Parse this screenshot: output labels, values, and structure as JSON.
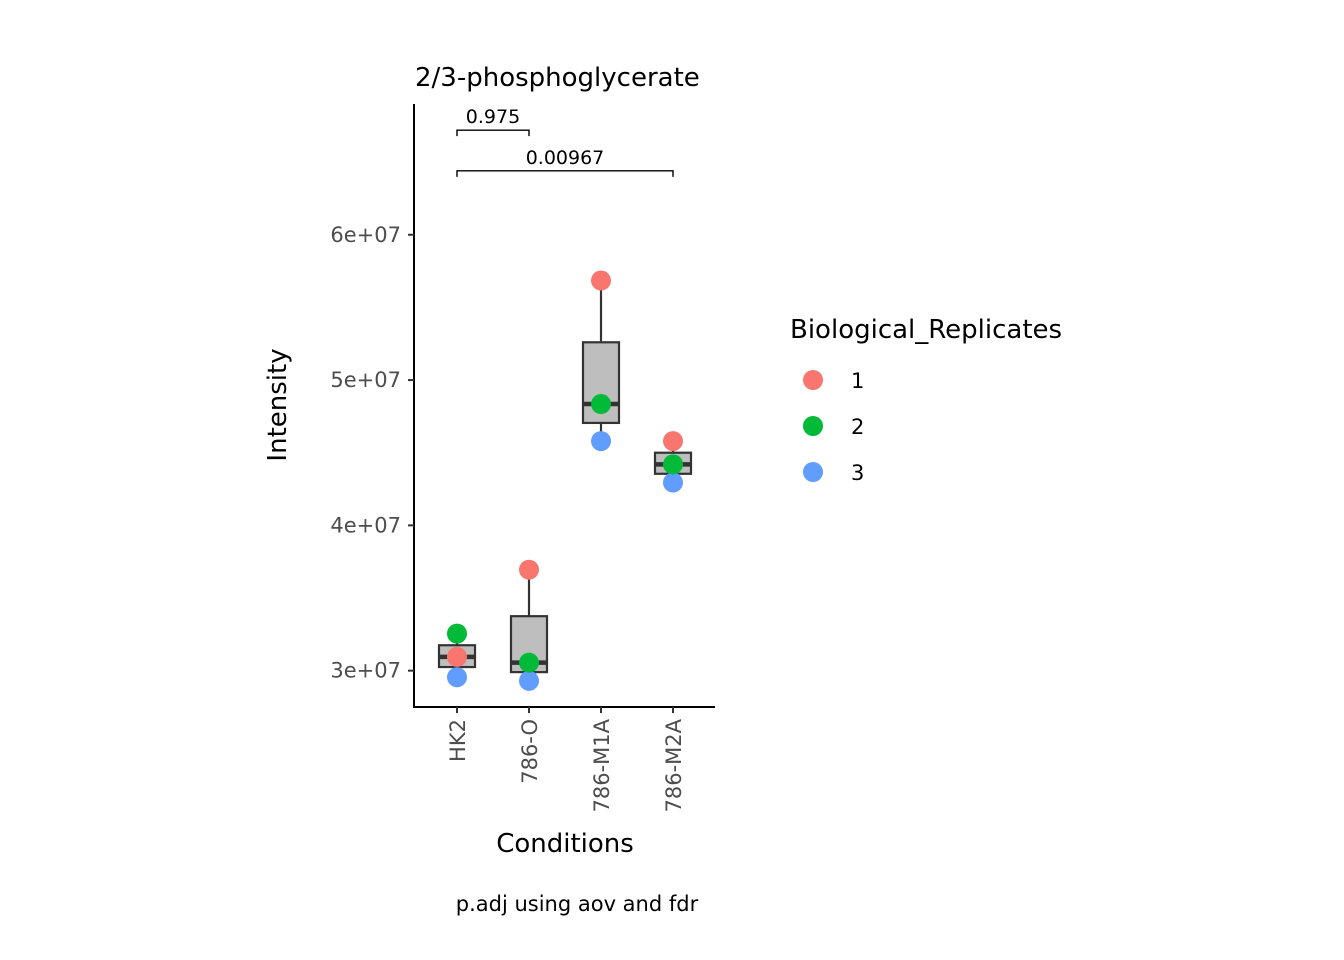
{
  "chart_data": {
    "type": "box",
    "title": "2/3-phosphoglycerate",
    "xlabel": "Conditions",
    "ylabel": "Intensity",
    "caption": "p.adj using  aov and fdr",
    "categories": [
      "HK2",
      "786-O",
      "786-M1A",
      "786-M2A"
    ],
    "ylim": [
      27500000,
      69000000
    ],
    "yticks": [
      30000000,
      40000000,
      50000000,
      60000000
    ],
    "ytick_labels": [
      "3e+07",
      "4e+07",
      "5e+07",
      "6e+07"
    ],
    "boxes": [
      {
        "category": "HK2",
        "q1": 30250000,
        "median": 30950000,
        "q3": 31750000,
        "whisker_low": 29550000,
        "whisker_high": 32550000
      },
      {
        "category": "786-O",
        "q1": 29900000,
        "median": 30550000,
        "q3": 33750000,
        "whisker_low": 29300000,
        "whisker_high": 36950000
      },
      {
        "category": "786-M1A",
        "q1": 47050000,
        "median": 48350000,
        "q3": 52600000,
        "whisker_low": 45800000,
        "whisker_high": 56850000
      },
      {
        "category": "786-M2A",
        "q1": 43550000,
        "median": 44200000,
        "q3": 45000000,
        "whisker_low": 42950000,
        "whisker_high": 45800000
      }
    ],
    "series": [
      {
        "name": "1",
        "values": [
          30950000,
          36950000,
          56850000,
          45800000
        ]
      },
      {
        "name": "2",
        "values": [
          32550000,
          30550000,
          48350000,
          44200000
        ]
      },
      {
        "name": "3",
        "values": [
          29550000,
          29300000,
          45800000,
          42950000
        ]
      }
    ],
    "comparisons": [
      {
        "from": "HK2",
        "to": "786-O",
        "label": "0.975",
        "y": 67200000
      },
      {
        "from": "HK2",
        "to": "786-M2A",
        "label": "0.00967",
        "y": 64400000
      }
    ],
    "legend": {
      "title": "Biological_Replicates",
      "position": "right"
    },
    "colors": {
      "1": "#F8766D",
      "2": "#00BA38",
      "3": "#619CFF",
      "box_fill": "#BEBEBE",
      "box_stroke": "#333333"
    },
    "grid": false
  }
}
